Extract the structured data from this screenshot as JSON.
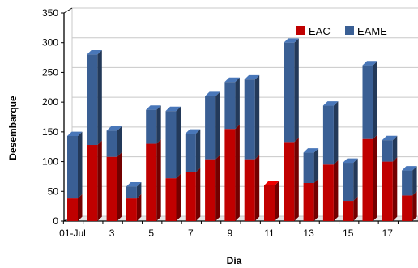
{
  "chart_data": {
    "type": "bar",
    "stacked": true,
    "xlabel": "Día",
    "ylabel": "Desembarque",
    "ylim": [
      0,
      350
    ],
    "yticks": [
      0,
      50,
      100,
      150,
      200,
      250,
      300,
      350
    ],
    "categories": [
      "01-Jul",
      "2",
      "3",
      "4",
      "5",
      "6",
      "7",
      "8",
      "9",
      "10",
      "11",
      "12",
      "13",
      "14",
      "15",
      "16",
      "17",
      "18"
    ],
    "x_tick_labels": [
      "01-Jul",
      "",
      "3",
      "",
      "5",
      "",
      "7",
      "",
      "9",
      "",
      "11",
      "",
      "13",
      "",
      "15",
      "",
      "17",
      ""
    ],
    "series": [
      {
        "name": "EAC",
        "color": "#c00000",
        "values": [
          38,
          128,
          108,
          38,
          130,
          72,
          82,
          104,
          155,
          104,
          60,
          133,
          64,
          95,
          34,
          138,
          100,
          43
        ]
      },
      {
        "name": "EAME",
        "color": "#3a5f94",
        "values": [
          105,
          152,
          44,
          20,
          57,
          113,
          65,
          106,
          79,
          134,
          0,
          167,
          51,
          99,
          64,
          124,
          36,
          42
        ]
      }
    ],
    "legend_position": "top-right",
    "grid": true
  }
}
